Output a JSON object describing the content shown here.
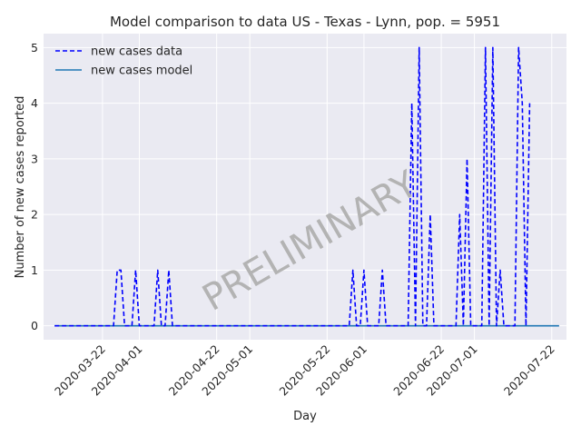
{
  "chart_data": {
    "type": "line",
    "title": "Model comparison to data US - Texas - Lynn, pop. = 5951",
    "xlabel": "Day",
    "ylabel": "Number of new cases reported",
    "watermark": "PRELIMINARY",
    "xlim": [
      "2020-03-06",
      "2020-07-26"
    ],
    "ylim": [
      -0.25,
      5.25
    ],
    "x_ticks": [
      "2020-03-22",
      "2020-04-01",
      "2020-04-22",
      "2020-05-01",
      "2020-05-22",
      "2020-06-01",
      "2020-06-22",
      "2020-07-01",
      "2020-07-22"
    ],
    "y_ticks": [
      0,
      1,
      2,
      3,
      4,
      5
    ],
    "grid": true,
    "legend_position": "upper-left",
    "x_start": "2020-03-09",
    "series": [
      {
        "name": "new cases data",
        "style": "dashed",
        "color": "#0000ff",
        "values": [
          0,
          0,
          0,
          0,
          0,
          0,
          0,
          0,
          0,
          0,
          0,
          0,
          0,
          0,
          0,
          0,
          0,
          1,
          1,
          0,
          0,
          0,
          1,
          0,
          0,
          0,
          0,
          0,
          1,
          0,
          0,
          1,
          0,
          0,
          0,
          0,
          0,
          0,
          0,
          0,
          0,
          0,
          0,
          0,
          0,
          0,
          0,
          0,
          0,
          0,
          0,
          0,
          0,
          0,
          0,
          0,
          0,
          0,
          0,
          0,
          0,
          0,
          0,
          0,
          0,
          0,
          0,
          0,
          0,
          0,
          0,
          0,
          0,
          0,
          0,
          0,
          0,
          0,
          0,
          0,
          0,
          1,
          0,
          0,
          1,
          0,
          0,
          0,
          0,
          1,
          0,
          0,
          0,
          0,
          0,
          0,
          0,
          4,
          0,
          5,
          0,
          0,
          2,
          0,
          0,
          0,
          0,
          0,
          0,
          0,
          2,
          0,
          3,
          0,
          0,
          0,
          0,
          5,
          0,
          5,
          0,
          1,
          0,
          0,
          0,
          0,
          5,
          4,
          0,
          4
        ]
      },
      {
        "name": "new cases model",
        "style": "solid",
        "color": "#1f77b4",
        "values": [
          0,
          0,
          0,
          0,
          0,
          0,
          0,
          0,
          0,
          0,
          0,
          0,
          0,
          0,
          0,
          0,
          0,
          0,
          0,
          0,
          0,
          0,
          0,
          0,
          0,
          0,
          0,
          0,
          0,
          0,
          0,
          0,
          0,
          0,
          0,
          0,
          0,
          0,
          0,
          0,
          0,
          0,
          0,
          0,
          0,
          0,
          0,
          0,
          0,
          0,
          0,
          0,
          0,
          0,
          0,
          0,
          0,
          0,
          0,
          0,
          0,
          0,
          0,
          0,
          0,
          0,
          0,
          0,
          0,
          0,
          0,
          0,
          0,
          0,
          0,
          0,
          0,
          0,
          0,
          0,
          0,
          0,
          0,
          0,
          0,
          0,
          0,
          0,
          0,
          0,
          0,
          0,
          0,
          0,
          0,
          0,
          0,
          0,
          0,
          0,
          0,
          0,
          0,
          0,
          0,
          0,
          0,
          0,
          0,
          0,
          0,
          0,
          0,
          0,
          0,
          0,
          0,
          0,
          0,
          0,
          0,
          0,
          0,
          0,
          0,
          0,
          0,
          0,
          0,
          0,
          0,
          0,
          0,
          0,
          0,
          0,
          0,
          0
        ]
      }
    ]
  }
}
